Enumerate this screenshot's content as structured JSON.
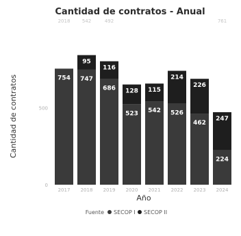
{
  "chart_data": {
    "type": "bar",
    "stacked": true,
    "title": "Cantidad de contratos - Anual",
    "xlabel": "Año",
    "ylabel": "Cantidad de contratos",
    "categories": [
      "2017",
      "2018",
      "2019",
      "2020",
      "2021",
      "2022",
      "2023",
      "2024"
    ],
    "top_labels": [
      "2018",
      "542",
      "492",
      "",
      "",
      "",
      "",
      "761"
    ],
    "ylim": [
      0,
      1000
    ],
    "yticks": [
      "0",
      "500"
    ],
    "series": [
      {
        "name": "SECOP I",
        "color": "#3a3a3a",
        "values": [
          754,
          747,
          686,
          523,
          542,
          526,
          462,
          224
        ]
      },
      {
        "name": "SECOP II",
        "color": "#1e1e1e",
        "values": [
          null,
          95,
          116,
          128,
          115,
          214,
          226,
          247
        ]
      }
    ],
    "legend": {
      "title": "Fuente",
      "position": "bottom"
    },
    "grid": false
  }
}
